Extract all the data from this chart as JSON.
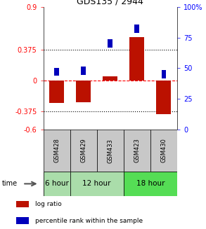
{
  "title": "GDS135 / 2944",
  "samples": [
    "GSM428",
    "GSM429",
    "GSM433",
    "GSM423",
    "GSM430"
  ],
  "log_ratio": [
    -0.28,
    -0.27,
    0.05,
    0.53,
    -0.41
  ],
  "percentile_rank": [
    47,
    48,
    70,
    82,
    45
  ],
  "ylim_left": [
    -0.6,
    0.9
  ],
  "ylim_right": [
    0,
    100
  ],
  "yticks_left": [
    -0.6,
    -0.375,
    0,
    0.375,
    0.9
  ],
  "ytick_labels_left": [
    "-0.6",
    "-0.375",
    "0",
    "0.375",
    "0.9"
  ],
  "yticks_right": [
    0,
    25,
    50,
    75,
    100
  ],
  "ytick_labels_right": [
    "0",
    "25",
    "50",
    "75",
    "100%"
  ],
  "hlines": [
    0.375,
    -0.375
  ],
  "bar_color_red": "#BB1100",
  "bar_color_blue": "#0000BB",
  "bg_color_gray": "#C8C8C8",
  "bg_color_green_light": "#AADDAA",
  "bg_color_green_dark": "#55CC55",
  "time_groups": [
    {
      "label": "6 hour",
      "start": 0,
      "end": 1,
      "color": "#AADDAA"
    },
    {
      "label": "12 hour",
      "start": 1,
      "end": 3,
      "color": "#AADDAA"
    },
    {
      "label": "18 hour",
      "start": 3,
      "end": 5,
      "color": "#55DD55"
    }
  ]
}
